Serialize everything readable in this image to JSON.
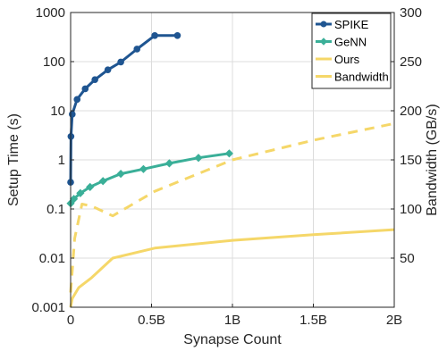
{
  "chart_data": {
    "type": "line",
    "xlabel": "Synapse Count",
    "ylabel_left": "Setup Time (s)",
    "ylabel_right": "Bandwidth (GB/s)",
    "x_range": [
      0,
      2000000000
    ],
    "x_ticks": [
      0,
      500000000,
      1000000000,
      1500000000,
      2000000000
    ],
    "x_tick_labels": [
      "0",
      "0.5B",
      "1B",
      "1.5B",
      "2B"
    ],
    "y_left_scale": "log",
    "y_left_range": [
      0.001,
      1000
    ],
    "y_left_ticks": [
      0.001,
      0.01,
      0.1,
      1,
      10,
      100,
      1000
    ],
    "y_left_tick_labels": [
      "0.001",
      "0.01",
      "0.1",
      "1",
      "10",
      "100",
      "1000"
    ],
    "y_right_range": [
      0,
      300
    ],
    "y_right_ticks": [
      50,
      100,
      150,
      200,
      250,
      300
    ],
    "y_right_tick_labels": [
      "50",
      "100",
      "150",
      "200",
      "250",
      "300"
    ],
    "grid": true,
    "legend_position": "top-right",
    "legend": [
      "SPIKE",
      "GeNN",
      "Ours",
      "Bandwidth"
    ],
    "series": [
      {
        "name": "SPIKE",
        "axis": "left",
        "color": "#1f5591",
        "marker": "circle",
        "line": "solid",
        "x": [
          0,
          2000000,
          10000000,
          40000000,
          90000000,
          150000000,
          230000000,
          310000000,
          410000000,
          520000000,
          660000000
        ],
        "y": [
          0.35,
          3.0,
          8.5,
          17,
          28,
          43,
          68,
          98,
          180,
          340,
          340
        ]
      },
      {
        "name": "GeNN",
        "axis": "left",
        "color": "#3aaf98",
        "marker": "diamond",
        "line": "solid",
        "x": [
          0,
          20000000,
          60000000,
          120000000,
          200000000,
          310000000,
          450000000,
          610000000,
          790000000,
          980000000
        ],
        "y": [
          0.13,
          0.16,
          0.21,
          0.28,
          0.37,
          0.52,
          0.65,
          0.85,
          1.1,
          1.35
        ]
      },
      {
        "name": "Ours",
        "axis": "left",
        "color": "#f5d769",
        "marker": "none",
        "line": "solid",
        "x": [
          0,
          10000000,
          50000000,
          130000000,
          260000000,
          520000000,
          1000000000,
          1500000000,
          2000000000
        ],
        "y": [
          0.001,
          0.0015,
          0.0025,
          0.004,
          0.01,
          0.016,
          0.023,
          0.03,
          0.038
        ]
      },
      {
        "name": "Bandwidth",
        "axis": "right",
        "color": "#f5d769",
        "marker": "none",
        "line": "dashed",
        "x": [
          0,
          25000000,
          70000000,
          130000000,
          260000000,
          520000000,
          1000000000,
          1500000000,
          2000000000
        ],
        "y": [
          15,
          70,
          105,
          103,
          93,
          118,
          150,
          170,
          187
        ]
      }
    ]
  }
}
